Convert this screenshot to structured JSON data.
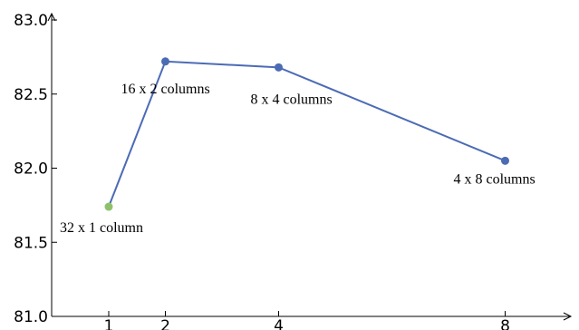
{
  "chart_data": {
    "type": "line",
    "title": "",
    "xlabel": "",
    "ylabel": "",
    "xlim": [
      0,
      9
    ],
    "ylim": [
      81.0,
      83.0
    ],
    "xticks": [
      {
        "value": 1,
        "label": "1"
      },
      {
        "value": 2,
        "label": "2"
      },
      {
        "value": 4,
        "label": "4"
      },
      {
        "value": 8,
        "label": "8"
      }
    ],
    "yticks": [
      {
        "value": 81.0,
        "label": "81.0"
      },
      {
        "value": 81.5,
        "label": "81.5"
      },
      {
        "value": 82.0,
        "label": "82.0"
      },
      {
        "value": 82.5,
        "label": "82.5"
      },
      {
        "value": 83.0,
        "label": "83.0"
      }
    ],
    "grid": false,
    "series": [
      {
        "color": "#4c6bb5",
        "points": [
          {
            "x": 1,
            "y": 81.74,
            "label": "32 x 1 column",
            "color": "#8dc26a"
          },
          {
            "x": 2,
            "y": 82.72,
            "label": "16 x 2 columns",
            "color": "#4c6bb5"
          },
          {
            "x": 4,
            "y": 82.68,
            "label": "8 x 4 columns",
            "color": "#4c6bb5"
          },
          {
            "x": 8,
            "y": 82.05,
            "label": "4 x 8 columns",
            "color": "#4c6bb5"
          }
        ]
      }
    ]
  }
}
